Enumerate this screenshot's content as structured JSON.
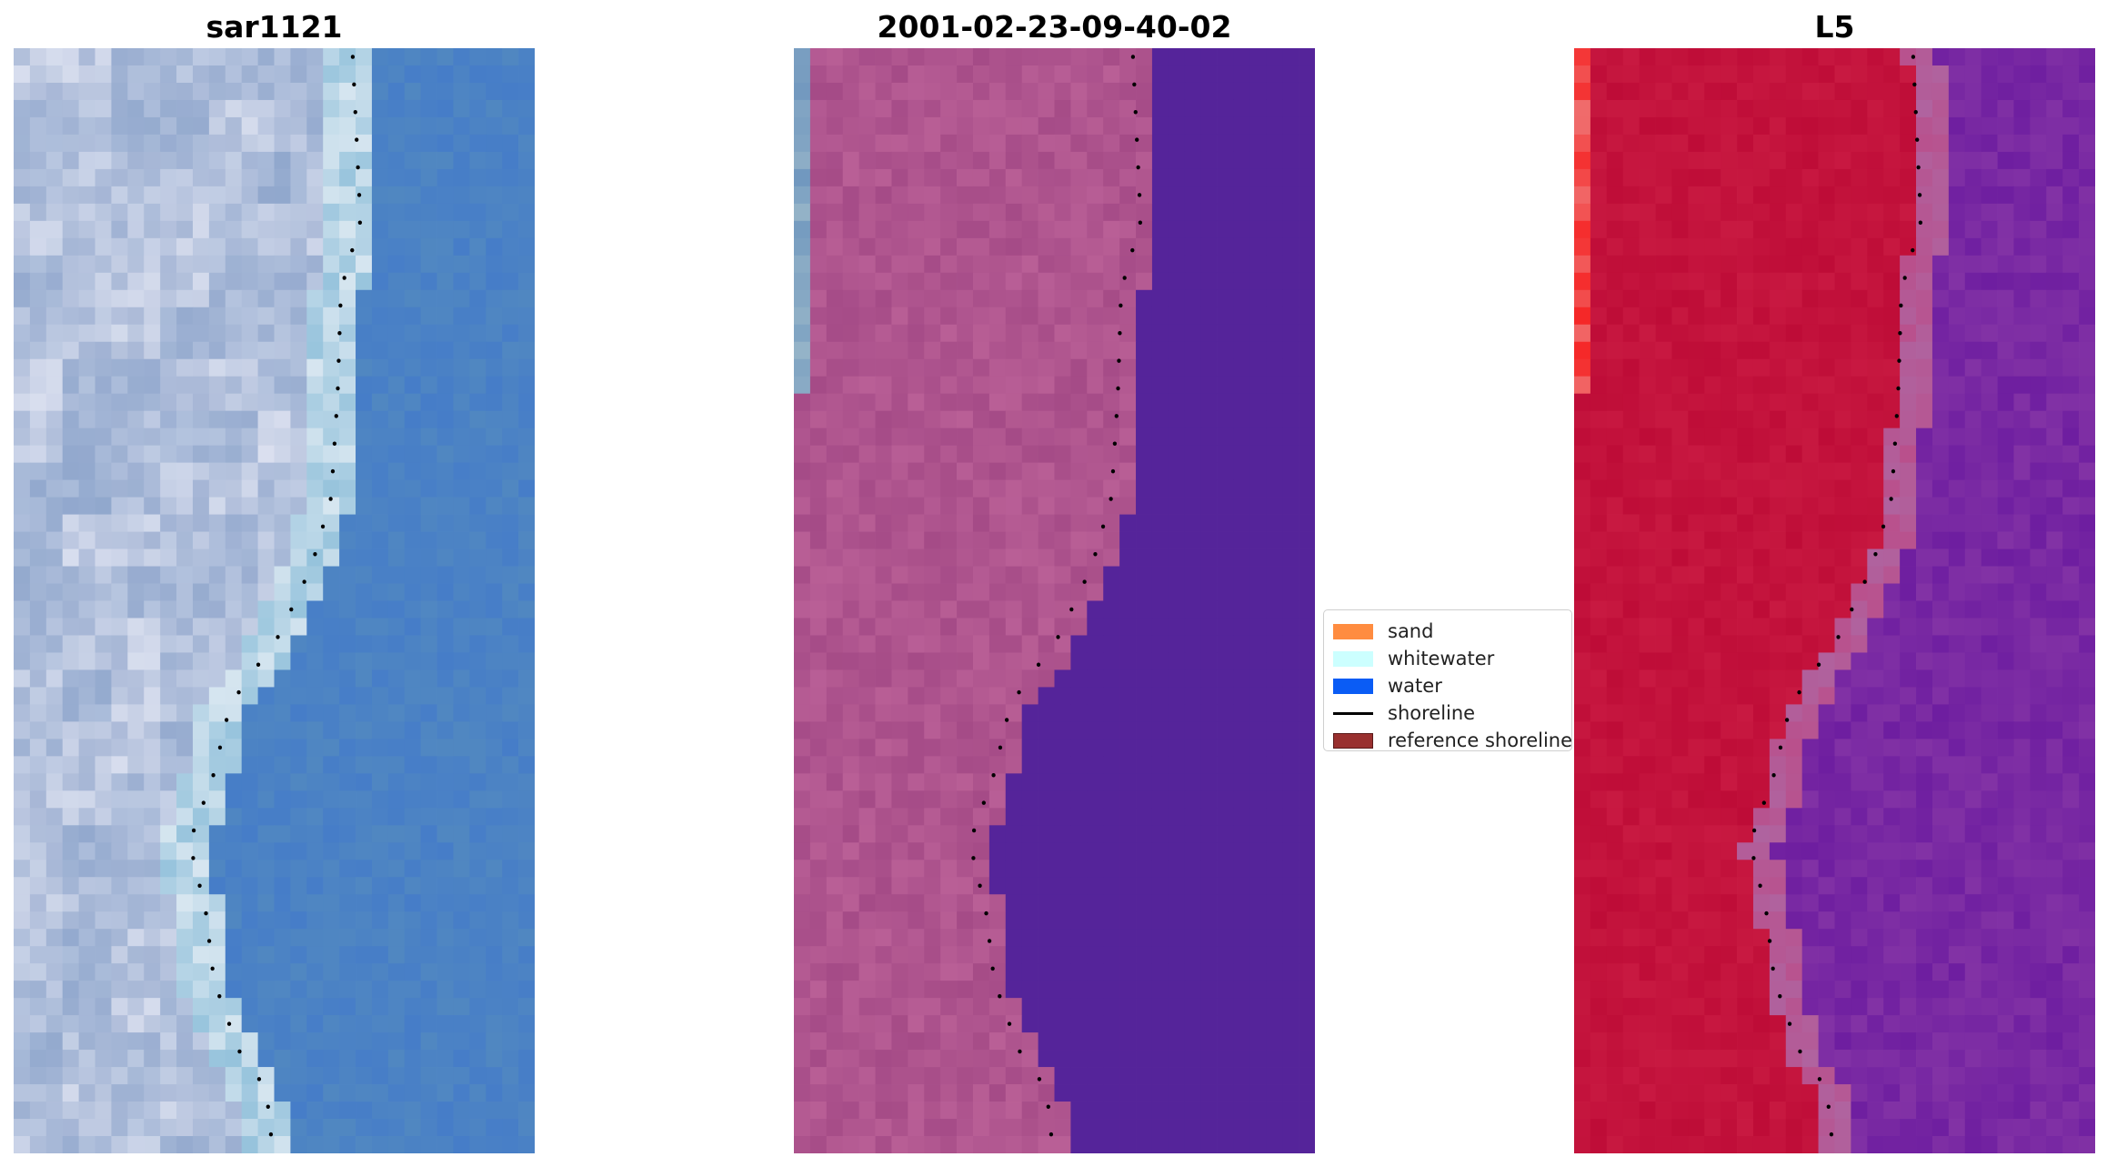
{
  "panels": [
    {
      "title": "sar1121"
    },
    {
      "title": "2001-02-23-09-40-02"
    },
    {
      "title": "L5"
    }
  ],
  "legend": {
    "items": [
      {
        "label": "sand",
        "color": "#ff8c40",
        "kind": "patch"
      },
      {
        "label": "whitewater",
        "color": "#ccffff",
        "kind": "patch"
      },
      {
        "label": "water",
        "color": "#0a5cf5",
        "kind": "patch"
      },
      {
        "label": "shoreline",
        "color": "#000000",
        "kind": "line"
      },
      {
        "label": "reference shoreline",
        "color": "#99302f",
        "kind": "patch"
      }
    ]
  },
  "colors": {
    "water_rgb": "#4a80c8",
    "water_class": "#55249a",
    "land_class": "#a34a8a",
    "heat_land": "#c0103a",
    "heat_sea": "#7a2ca0"
  }
}
